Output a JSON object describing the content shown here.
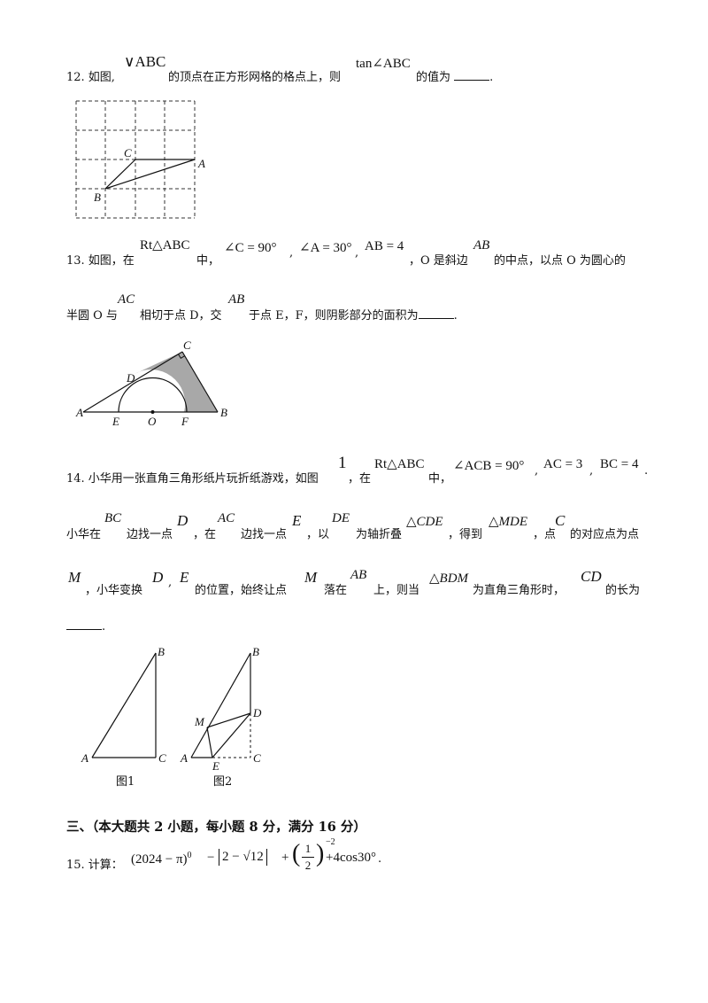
{
  "q12": {
    "num": "12. 如图,",
    "tri": "∨ABC",
    "t1": "的顶点在正方形网格的格点上，则",
    "tan": "tan∠ABC",
    "t2": "的值为",
    "end": ".",
    "labels": {
      "A": "A",
      "B": "B",
      "C": "C"
    }
  },
  "q13": {
    "num": "13. 如图，在",
    "rt": "Rt△ABC",
    "mid": "中，",
    "c90": "∠C = 90°",
    "a30": "∠A = 30°",
    "ab4": "AB = 4",
    "t1": "，O 是斜边",
    "ab": "AB",
    "t2": "的中点，以点 O 为圆心的",
    "l2a": "半圆 O 与",
    "ac": "AC",
    "l2b": "相切于点 D，交",
    "ab2": "AB",
    "l2c": "于点 E，F，则阴影部分的面积为",
    "end": ".",
    "labels": {
      "A": "A",
      "B": "B",
      "C": "C",
      "D": "D",
      "E": "E",
      "O": "O",
      "F": "F"
    }
  },
  "q14": {
    "num": "14. 小华用一张直角三角形纸片玩折纸游戏，如图",
    "one": "1",
    "in": "，在",
    "rt": "Rt△ABC",
    "mid": "中，",
    "acb": "∠ACB = 90°",
    "ac3": "AC = 3",
    "bc4": "BC = 4",
    "l2a": "小华在",
    "bc": "BC",
    "l2b": "边找一点",
    "d": "D",
    "l2c": "，在",
    "ac": "AC",
    "l2d": "边找一点",
    "e": "E",
    "l2e": "，以",
    "de": "DE",
    "l2f": "为轴折叠",
    "cde": "△CDE",
    "l2g": "，得到",
    "mde": "△MDE",
    "l2h": "，点",
    "c": "C",
    "l2i": "的对应点为点",
    "m": "M",
    "l3a": "，小华变换",
    "d2": "D",
    "e2": "E",
    "l3b": "的位置，始终让点",
    "m2": "M",
    "l3c": "落在",
    "ab": "AB",
    "l3d": "上，则当",
    "bdm": "△BDM",
    "l3e": "为直角三角形时，",
    "cd": "CD",
    "l3f": "的长为",
    "end": ".",
    "fig1": "图1",
    "fig2": "图2",
    "labels": {
      "A": "A",
      "B": "B",
      "C": "C",
      "D": "D",
      "E": "E",
      "M": "M"
    }
  },
  "section": "三、（本大题共 2 小题，每小题 8 分，满分 16 分）",
  "q15": {
    "num": "15. 计算：",
    "p1": "(2024 − π)",
    "e0": "0",
    "minus": "−",
    "abs": "2 − √12",
    "plus": "+",
    "half_n": "1",
    "half_d": "2",
    "em2": "−2",
    "tail": "+4cos30°",
    "end": "."
  }
}
